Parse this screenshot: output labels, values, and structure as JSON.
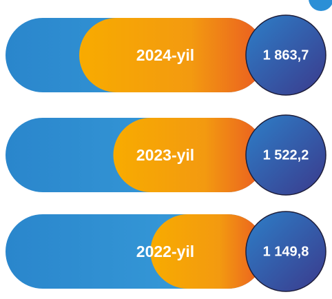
{
  "chart_data": {
    "type": "bar",
    "categories": [
      "2024-yil",
      "2023-yil",
      "2022-yil"
    ],
    "values": [
      1863.7,
      1522.2,
      1149.8
    ],
    "value_labels": [
      "1 863,7",
      "1 522,2",
      "1 149,8"
    ]
  }
}
